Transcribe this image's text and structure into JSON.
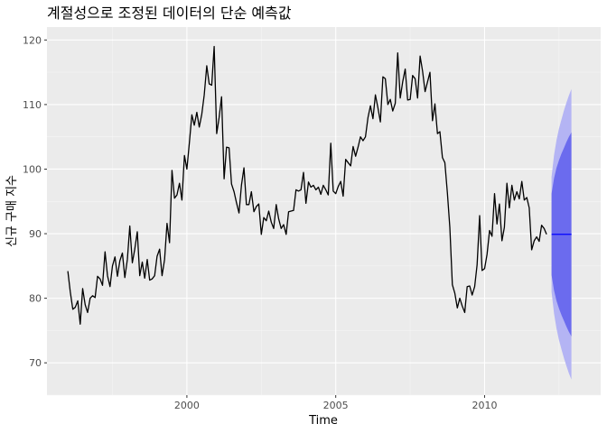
{
  "chart_data": {
    "type": "line",
    "title": "계절성으로 조정된 데이터의 단순 예측값",
    "xlabel": "Time",
    "ylabel": "신규 구매 지수",
    "xlim": [
      1995.3,
      2013.9
    ],
    "ylim": [
      65,
      122
    ],
    "x_ticks": [
      2000,
      2005,
      2010
    ],
    "x_tick_labels": [
      "2000",
      "2005",
      "2010"
    ],
    "y_ticks": [
      70,
      80,
      90,
      100,
      110,
      120
    ],
    "y_tick_labels": [
      "70",
      "80",
      "90",
      "100",
      "110",
      "120"
    ],
    "grid": true,
    "x_start": 1996.0,
    "x_step": 0.083333,
    "values": [
      84.2,
      81.0,
      78.3,
      78.6,
      79.6,
      76.0,
      81.5,
      79.0,
      77.8,
      80.0,
      80.4,
      80.1,
      83.4,
      83.0,
      82.0,
      87.2,
      83.5,
      81.8,
      85.0,
      86.4,
      83.4,
      85.8,
      87.0,
      83.2,
      86.0,
      91.2,
      85.5,
      87.6,
      90.3,
      83.5,
      85.6,
      83.1,
      86.0,
      82.8,
      83.0,
      83.5,
      86.5,
      87.6,
      83.5,
      86.0,
      91.6,
      88.6,
      99.8,
      95.5,
      96.0,
      97.8,
      95.2,
      102.1,
      100.0,
      104.0,
      108.4,
      106.8,
      108.8,
      106.5,
      108.5,
      111.5,
      116.0,
      113.2,
      113.0,
      119.0,
      105.5,
      108.0,
      111.2,
      98.5,
      103.4,
      103.3,
      97.7,
      96.5,
      94.8,
      93.2,
      97.5,
      100.2,
      94.5,
      94.5,
      96.5,
      93.4,
      94.2,
      94.6,
      89.9,
      92.5,
      92.0,
      93.5,
      91.8,
      90.8,
      94.5,
      92.3,
      90.8,
      91.4,
      89.9,
      93.4,
      93.5,
      93.6,
      96.8,
      96.6,
      96.8,
      99.5,
      94.7,
      98.0,
      97.2,
      97.5,
      96.8,
      97.2,
      96.1,
      97.5,
      96.8,
      96.0,
      104.0,
      96.6,
      96.2,
      97.3,
      98.1,
      95.8,
      101.5,
      101.0,
      100.5,
      103.5,
      102.0,
      103.4,
      105.0,
      104.4,
      105.0,
      108.0,
      109.8,
      107.8,
      111.5,
      109.5,
      107.3,
      114.3,
      114.0,
      110.0,
      110.8,
      109.0,
      110.2,
      118.0,
      111.0,
      113.5,
      115.5,
      110.7,
      110.8,
      114.5,
      114.0,
      111.0,
      117.5,
      115.2,
      112.0,
      113.5,
      115.0,
      107.5,
      110.1,
      105.5,
      105.8,
      101.8,
      101.0,
      96.3,
      91.0,
      82.1,
      80.8,
      78.5,
      80.0,
      78.8,
      77.8,
      81.8,
      81.9,
      80.5,
      81.8,
      85.2,
      92.8,
      84.3,
      84.6,
      86.8,
      90.5,
      89.6,
      96.2,
      91.5,
      94.6,
      88.9,
      91.0,
      97.8,
      94.0,
      97.5,
      95.2,
      96.5,
      95.4,
      98.1,
      95.2,
      95.6,
      94.0,
      87.5,
      88.9,
      89.5,
      88.8,
      91.3,
      90.8,
      89.9
    ],
    "forecast": {
      "start": 2012.25,
      "end": 2012.92,
      "point": 89.9,
      "step": 0.083333,
      "lower80": [
        83.6,
        81.2,
        79.6,
        78.4,
        77.4,
        76.5,
        75.6,
        74.8,
        74.1
      ],
      "upper80": [
        96.2,
        98.6,
        100.2,
        101.4,
        102.4,
        103.3,
        104.2,
        105.0,
        105.7
      ],
      "lower95": [
        81.0,
        77.6,
        75.3,
        73.5,
        72.1,
        70.7,
        69.5,
        68.4,
        67.4
      ],
      "upper95": [
        98.8,
        102.2,
        104.5,
        106.3,
        107.7,
        109.1,
        110.3,
        111.4,
        112.4
      ]
    },
    "colors": {
      "panel": "#ebebeb",
      "grid_major": "#ffffff",
      "grid_minor": "#f5f5f5",
      "line": "#000000",
      "forecast_line": "#0000ff",
      "band80": "#6b6bee",
      "band95": "#b4b4f4"
    }
  }
}
